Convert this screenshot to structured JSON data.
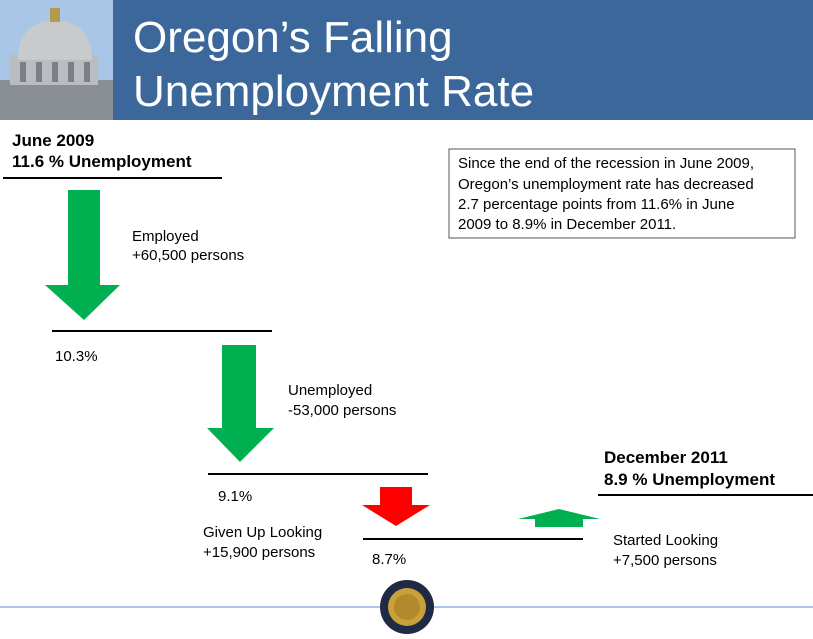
{
  "header": {
    "title": [
      "Oregon’s Falling",
      "Unemployment Rate"
    ]
  },
  "start": {
    "date": "June 2009",
    "rate": "11.6 % Unemployment"
  },
  "end": {
    "date": "December 2011",
    "rate": "8.9 % Unemployment"
  },
  "note": [
    "Since the end of the recession in June 2009,",
    "Oregon’s unemployment rate has decreased",
    "2.7 percentage points from 11.6% in June",
    "2009 to 8.9% in December 2011."
  ],
  "steps": [
    {
      "label": "Employed",
      "change": "+60,500 persons",
      "level": "10.3%"
    },
    {
      "label": "Unemployed",
      "change": "-53,000 persons",
      "level": "9.1%"
    },
    {
      "label": "Given Up Looking",
      "change": "+15,900 persons",
      "level": "8.7%"
    },
    {
      "label": "Started Looking",
      "change": "+7,500 persons"
    }
  ]
}
